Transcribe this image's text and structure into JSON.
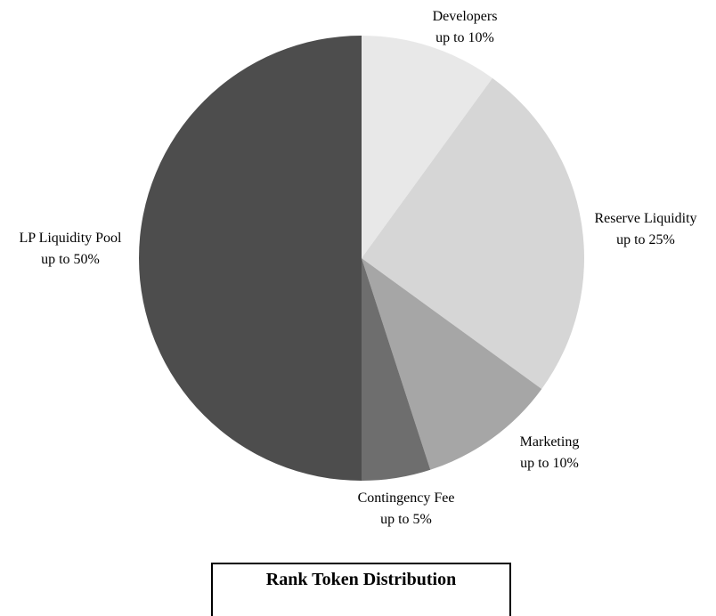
{
  "chart_data": {
    "type": "pie",
    "title": "Rank Token Distribution",
    "slices": [
      {
        "name": "Developers",
        "label": "up to 10%",
        "value": 10,
        "color": "#e8e8e8"
      },
      {
        "name": "Reserve Liquidity",
        "label": "up to 25%",
        "value": 25,
        "color": "#d6d6d6"
      },
      {
        "name": "Marketing",
        "label": "up to 10%",
        "value": 10,
        "color": "#a6a6a6"
      },
      {
        "name": "Contingency Fee",
        "label": "up to 5%",
        "value": 5,
        "color": "#6e6e6e"
      },
      {
        "name": "LP Liquidity Pool",
        "label": "up to 50%",
        "value": 50,
        "color": "#4d4d4d"
      }
    ],
    "start_angle": "12 o'clock",
    "direction": "clockwise"
  }
}
